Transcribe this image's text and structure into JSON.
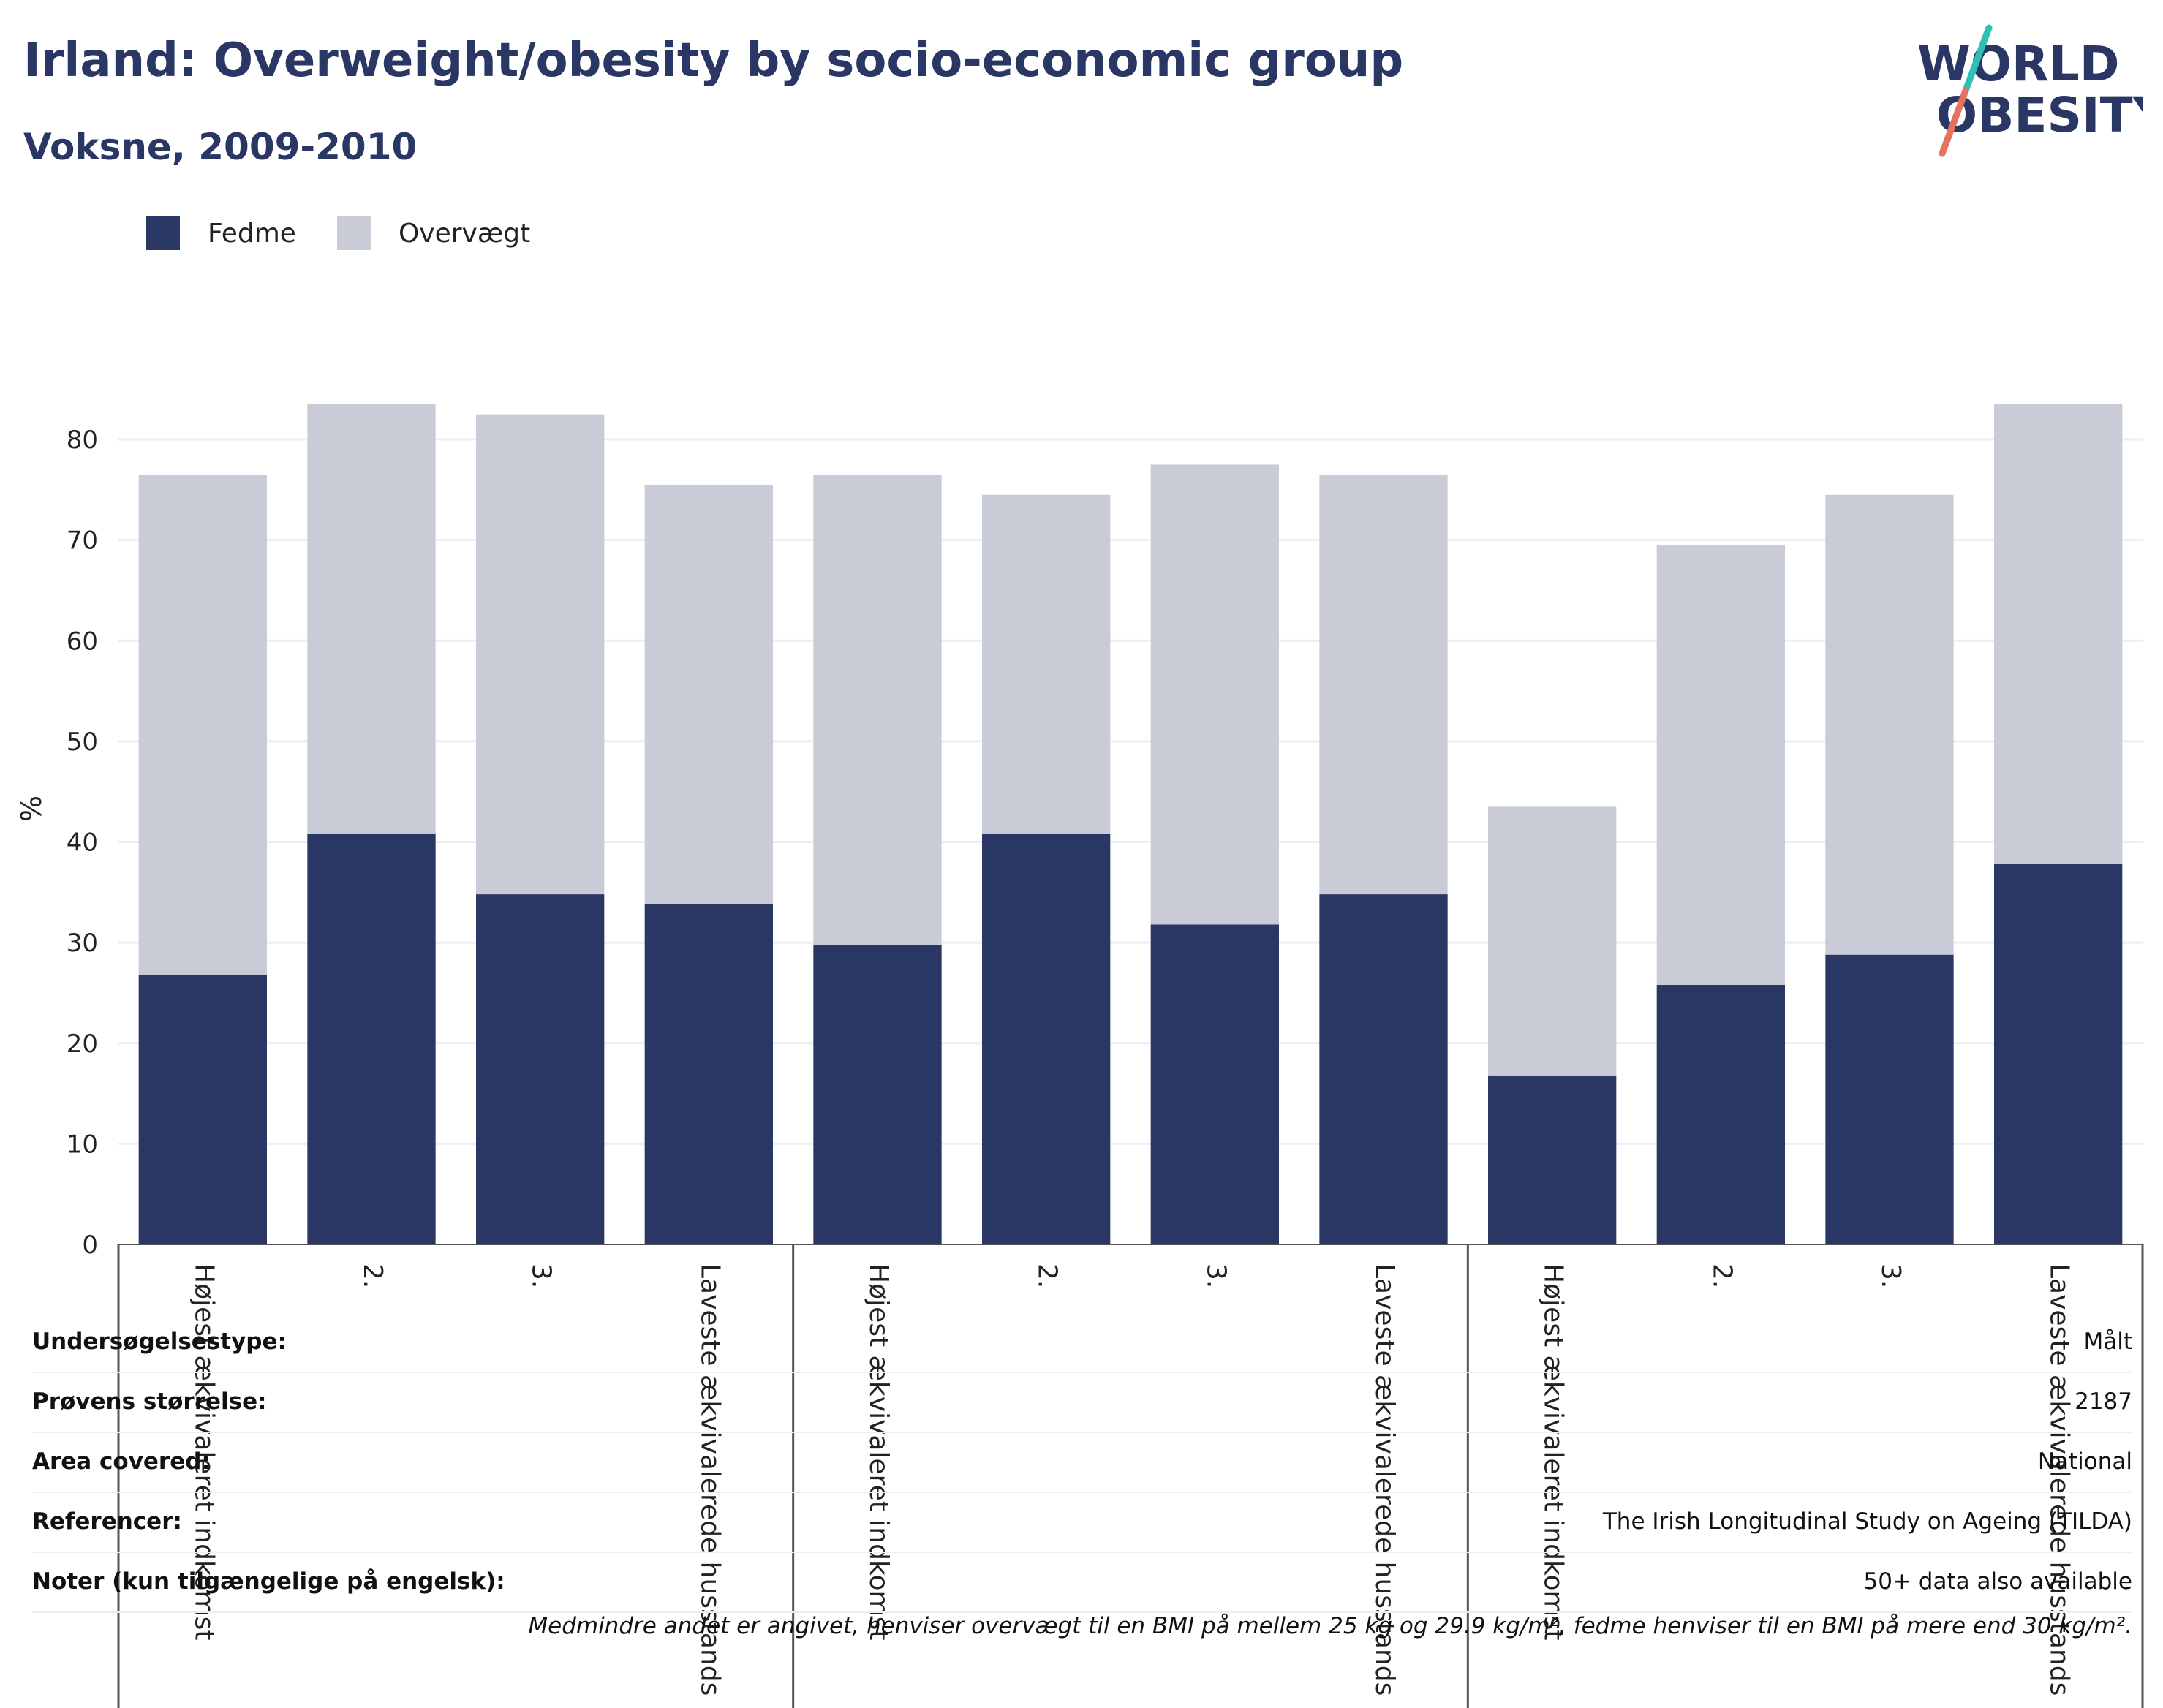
{
  "header": {
    "title": "Irland: Overweight/obesity by socio-economic group",
    "subtitle": "Voksne, 2009-2010"
  },
  "logo": {
    "line1": "WORLD",
    "line2": "OBESITY",
    "colors": {
      "text": "#2a3663",
      "slash_top": "#2fbfb4",
      "slash_bottom": "#e8705f"
    }
  },
  "legend": {
    "items": [
      {
        "label": "Fedme",
        "color": "#2a3663"
      },
      {
        "label": "Overvægt",
        "color": "#c9cbd7"
      }
    ]
  },
  "chart_data": {
    "type": "bar",
    "stacked": true,
    "ylabel": "%",
    "ylim": [
      0,
      84
    ],
    "yticks": [
      0,
      10,
      20,
      30,
      40,
      50,
      60,
      70,
      80
    ],
    "grid": true,
    "categories": [
      "Højest ækvivaleret indkomst",
      "2.",
      "3.",
      "Laveste ækvivalerede husstands",
      "Højest ækvivaleret indkomst",
      "2.",
      "3.",
      "Laveste ækvivalerede husstands",
      "Højest ækvivaleret indkomst",
      "2.",
      "3.",
      "Laveste ækvivalerede husstands"
    ],
    "group_size": 4,
    "series": [
      {
        "name": "Fedme",
        "color": "#2a3663",
        "values": [
          26.8,
          40.8,
          34.8,
          33.8,
          29.8,
          40.8,
          31.8,
          34.8,
          16.8,
          25.8,
          28.8,
          37.8
        ]
      },
      {
        "name": "Overvægt",
        "color": "#c9cbd7",
        "values": [
          49.7,
          42.7,
          47.7,
          41.7,
          46.7,
          33.7,
          45.7,
          41.7,
          26.7,
          43.7,
          45.7,
          45.7
        ]
      }
    ]
  },
  "info_table": [
    {
      "label": "Undersøgelsestype:",
      "value": "Målt"
    },
    {
      "label": "Prøvens størrelse:",
      "value": "2187"
    },
    {
      "label": "Area covered:",
      "value": "National"
    },
    {
      "label": "Referencer:",
      "value": "The Irish Longitudinal Study on Ageing (TILDA)"
    },
    {
      "label": "Noter (kun tilgængelige på engelsk):",
      "value": "50+ data also available"
    }
  ],
  "footnote": "Medmindre andet er angivet, henviser overvægt til en BMI på mellem 25 kg og 29.9 kg/m², fedme henviser til en BMI på mere end 30 kg/m²."
}
